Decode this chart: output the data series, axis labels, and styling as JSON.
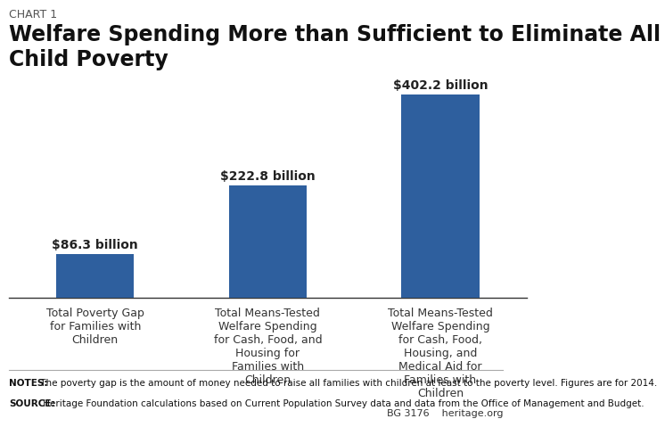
{
  "chart_label": "CHART 1",
  "title": "Welfare Spending More than Sufficient to Eliminate All Child Poverty",
  "categories": [
    "Total Poverty Gap\nfor Families with\nChildren",
    "Total Means-Tested\nWelfare Spending\nfor Cash, Food, and\nHousing for\nFamilies with\nChildren",
    "Total Means-Tested\nWelfare Spending\nfor Cash, Food,\nHousing, and\nMedical Aid for\nFamilies with\nChildren"
  ],
  "values": [
    86.3,
    222.8,
    402.2
  ],
  "labels": [
    "$86.3 billion",
    "$222.8 billion",
    "$402.2 billion"
  ],
  "bar_color": "#2e5f9e",
  "background_color": "#ffffff",
  "notes_bold": "NOTES:",
  "notes_text": " The poverty gap is the amount of money needed to raise all families with children at least to the poverty level. Figures are for 2014.",
  "source_bold": "SOURCE:",
  "source_text": " Heritage Foundation calculations based on Current Population Survey data and data from the Office of Management and Budget.",
  "footer_right": "BG 3176    heritage.org",
  "ylim": [
    0,
    450
  ],
  "title_fontsize": 17,
  "chart_label_fontsize": 9,
  "bar_label_fontsize": 10,
  "tick_label_fontsize": 9,
  "notes_fontsize": 7.5,
  "footer_fontsize": 8
}
